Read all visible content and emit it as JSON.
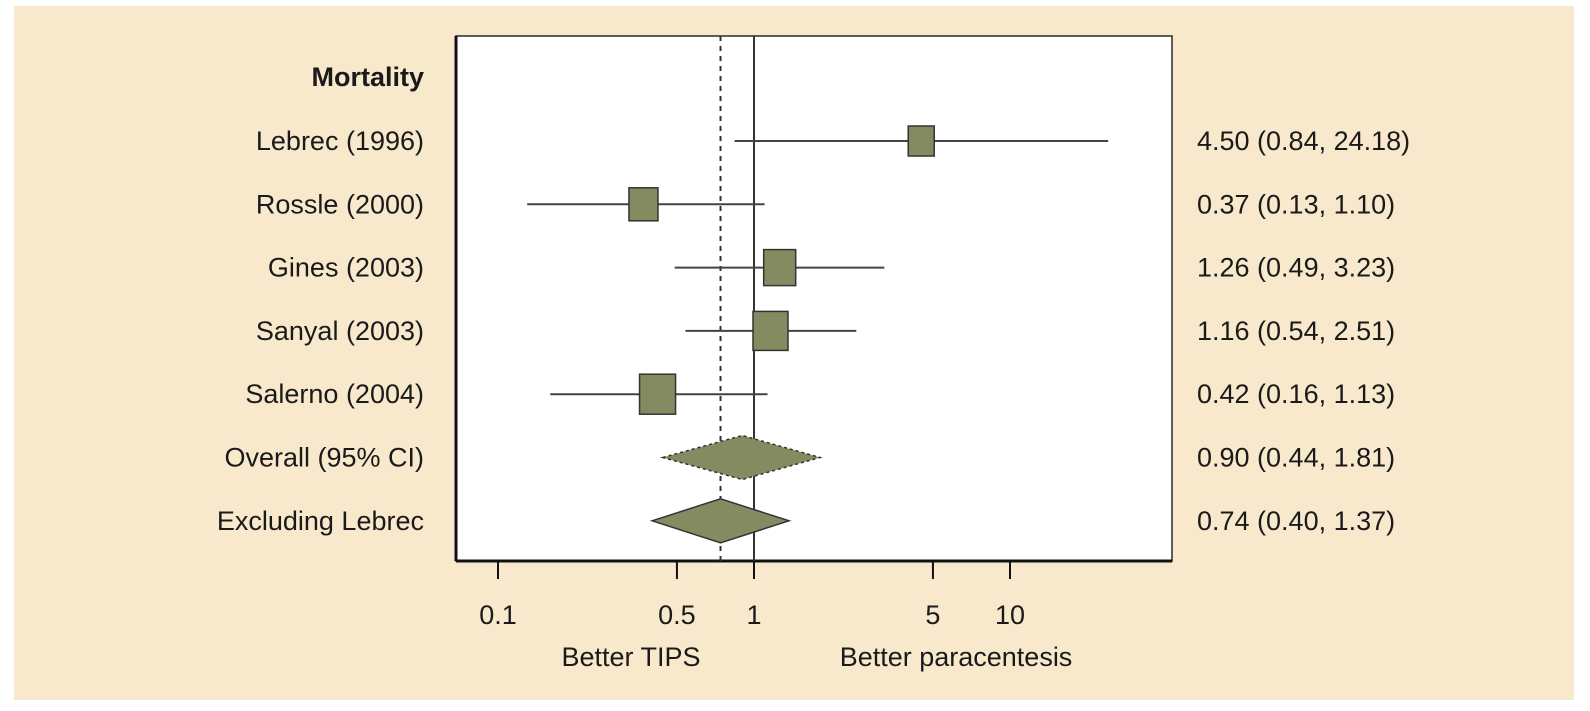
{
  "chart_data": {
    "type": "forest",
    "title": "Mortality",
    "x_scale": "log",
    "xlim": [
      0.07,
      35
    ],
    "ticks": [
      0.1,
      0.5,
      1,
      5,
      10
    ],
    "tick_labels": [
      "0.1",
      "0.5",
      "1",
      "5",
      "10"
    ],
    "xlabel_left": "Better TIPS",
    "xlabel_right": "Better paracentesis",
    "reference_line": 1,
    "dashed_reference_line": 0.74,
    "marker_color": "#858b60",
    "background_color": "#f9e9cc",
    "studies": [
      {
        "label": "Lebrec (1996)",
        "estimate": 4.5,
        "lower": 0.84,
        "upper": 24.18,
        "text": "4.50 (0.84, 24.18)"
      },
      {
        "label": "Rossle (2000)",
        "estimate": 0.37,
        "lower": 0.13,
        "upper": 1.1,
        "text": "0.37 (0.13, 1.10)"
      },
      {
        "label": "Gines (2003)",
        "estimate": 1.26,
        "lower": 0.49,
        "upper": 3.23,
        "text": "1.26 (0.49, 3.23)"
      },
      {
        "label": "Sanyal (2003)",
        "estimate": 1.16,
        "lower": 0.54,
        "upper": 2.51,
        "text": "1.16 (0.54, 2.51)"
      },
      {
        "label": "Salerno (2004)",
        "estimate": 0.42,
        "lower": 0.16,
        "upper": 1.13,
        "text": "0.42 (0.16, 1.13)"
      }
    ],
    "summaries": [
      {
        "label": "Overall (95% CI)",
        "estimate": 0.9,
        "lower": 0.44,
        "upper": 1.81,
        "text": "0.90 (0.44, 1.81)",
        "style": "dotted"
      },
      {
        "label": "Excluding Lebrec",
        "estimate": 0.74,
        "lower": 0.4,
        "upper": 1.37,
        "text": "0.74 (0.40, 1.37)",
        "style": "solid"
      }
    ]
  }
}
